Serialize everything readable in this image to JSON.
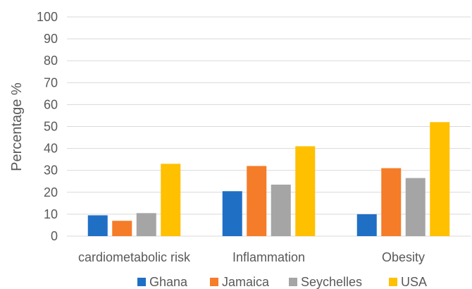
{
  "chart_data": {
    "type": "bar",
    "title": "",
    "xlabel": "",
    "ylabel": "Percentage %",
    "ylim": [
      0,
      100
    ],
    "yticks": [
      0,
      10,
      20,
      30,
      40,
      50,
      60,
      70,
      80,
      90,
      100
    ],
    "grid": true,
    "legend_position": "bottom",
    "categories": [
      "cardiometabolic risk",
      "Inflammation",
      "Obesity"
    ],
    "series": [
      {
        "name": "Ghana",
        "color": "#1f6fc5",
        "values": [
          9.5,
          20.5,
          10
        ]
      },
      {
        "name": "Jamaica",
        "color": "#f57c28",
        "values": [
          7,
          32,
          31
        ]
      },
      {
        "name": "Seychelles",
        "color": "#a5a5a5",
        "values": [
          10.5,
          23.5,
          26.5
        ]
      },
      {
        "name": "USA",
        "color": "#ffc000",
        "values": [
          33,
          41,
          52
        ]
      }
    ]
  }
}
